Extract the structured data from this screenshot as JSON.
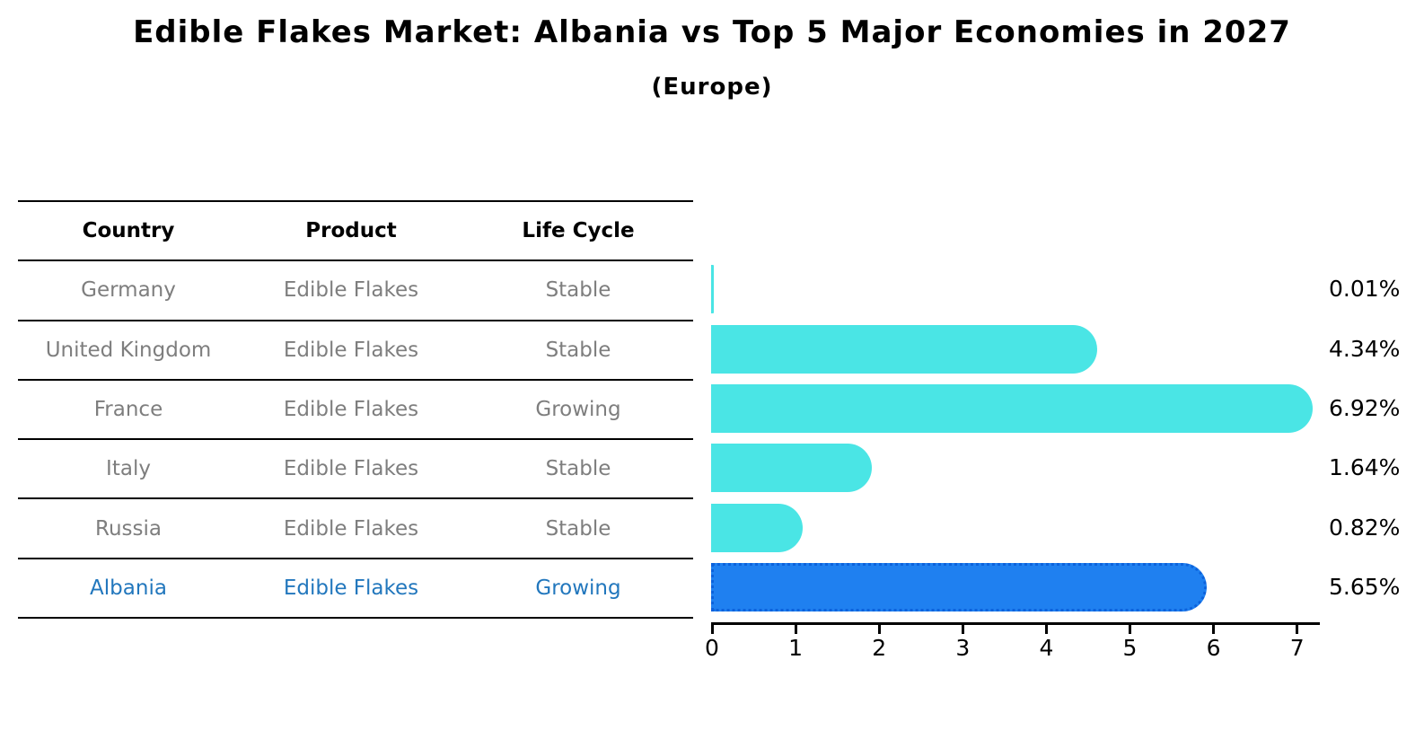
{
  "title": "Edible Flakes Market: Albania vs Top 5 Major Economies in 2027",
  "subtitle": "(Europe)",
  "table": {
    "headers": [
      "Country",
      "Product",
      "Life Cycle"
    ],
    "rows": [
      {
        "country": "Germany",
        "product": "Edible Flakes",
        "life_cycle": "Stable",
        "highlight": false
      },
      {
        "country": "United Kingdom",
        "product": "Edible Flakes",
        "life_cycle": "Stable",
        "highlight": false
      },
      {
        "country": "France",
        "product": "Edible Flakes",
        "life_cycle": "Growing",
        "highlight": false
      },
      {
        "country": "Italy",
        "product": "Edible Flakes",
        "life_cycle": "Stable",
        "highlight": false
      },
      {
        "country": "Russia",
        "product": "Edible Flakes",
        "life_cycle": "Stable",
        "highlight": false
      },
      {
        "country": "Albania",
        "product": "Edible Flakes",
        "life_cycle": "Growing",
        "highlight": true
      }
    ]
  },
  "chart_data": {
    "type": "bar",
    "orientation": "horizontal",
    "title": "Edible Flakes Market: Albania vs Top 5 Major Economies in 2027",
    "subtitle": "(Europe)",
    "categories": [
      "Germany",
      "United Kingdom",
      "France",
      "Italy",
      "Russia",
      "Albania"
    ],
    "values": [
      0.01,
      4.34,
      6.92,
      1.64,
      0.82,
      5.65
    ],
    "value_labels": [
      "0.01%",
      "4.34%",
      "6.92%",
      "1.64%",
      "0.82%",
      "5.65%"
    ],
    "xticks": [
      0,
      1,
      2,
      3,
      4,
      5,
      6,
      7
    ],
    "xlim": [
      0,
      7.2
    ],
    "xlabel": "",
    "ylabel": "",
    "grid": false,
    "legend": "none",
    "bar_color": "#4AE5E5",
    "highlight_index": 5,
    "highlight_color": "#1F80F0",
    "highlight_border_color": "#0C62DC"
  },
  "colors": {
    "muted_text": "#7E7E7E",
    "highlight_text": "#2277BD",
    "line": "#000000"
  }
}
